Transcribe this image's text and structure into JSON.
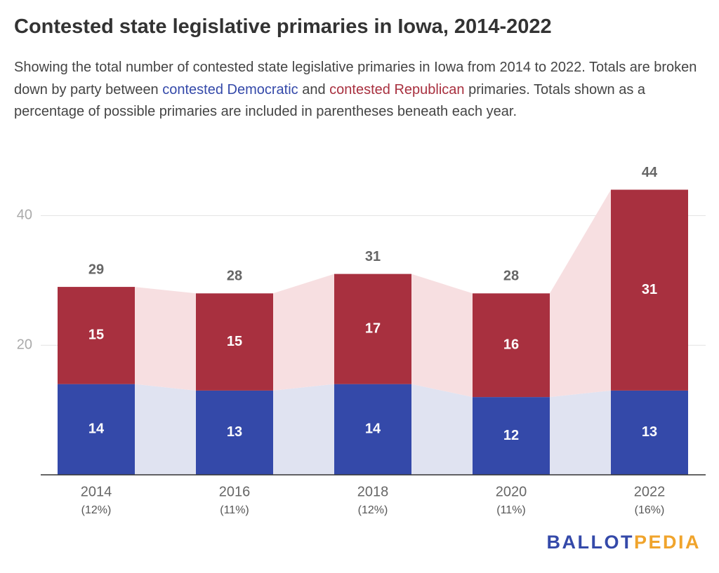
{
  "chart_data": {
    "type": "stacked-bar",
    "title": "Contested state legislative primaries in Iowa, 2014-2022",
    "subtitle": [
      "Showing the total number of contested state legislative primaries in Iowa from 2014 to 2022. Totals are broken down by party between ",
      "contested Democratic",
      " and ",
      "contested Republican",
      " primaries. Totals shown as a percentage of possible primaries are included in parentheses beneath each year."
    ],
    "categories": [
      "2014",
      "2016",
      "2018",
      "2020",
      "2022"
    ],
    "category_sublabels": [
      "(12%)",
      "(11%)",
      "(12%)",
      "(11%)",
      "(16%)"
    ],
    "series": [
      {
        "name": "contested Democratic",
        "color": "#3449a9",
        "band_color": "#e0e3f1",
        "values": [
          14,
          13,
          14,
          12,
          13
        ]
      },
      {
        "name": "contested Republican",
        "color": "#a8303f",
        "band_color": "#f7dfe1",
        "values": [
          15,
          15,
          17,
          16,
          31
        ]
      }
    ],
    "totals": [
      29,
      28,
      31,
      28,
      44
    ],
    "ylim": [
      0,
      46
    ],
    "yticks": [
      20,
      40
    ],
    "grid": true,
    "logo": [
      "BALLOT",
      "PEDIA"
    ],
    "logo_colors": [
      "#3449a9",
      "#f0a42c"
    ]
  }
}
